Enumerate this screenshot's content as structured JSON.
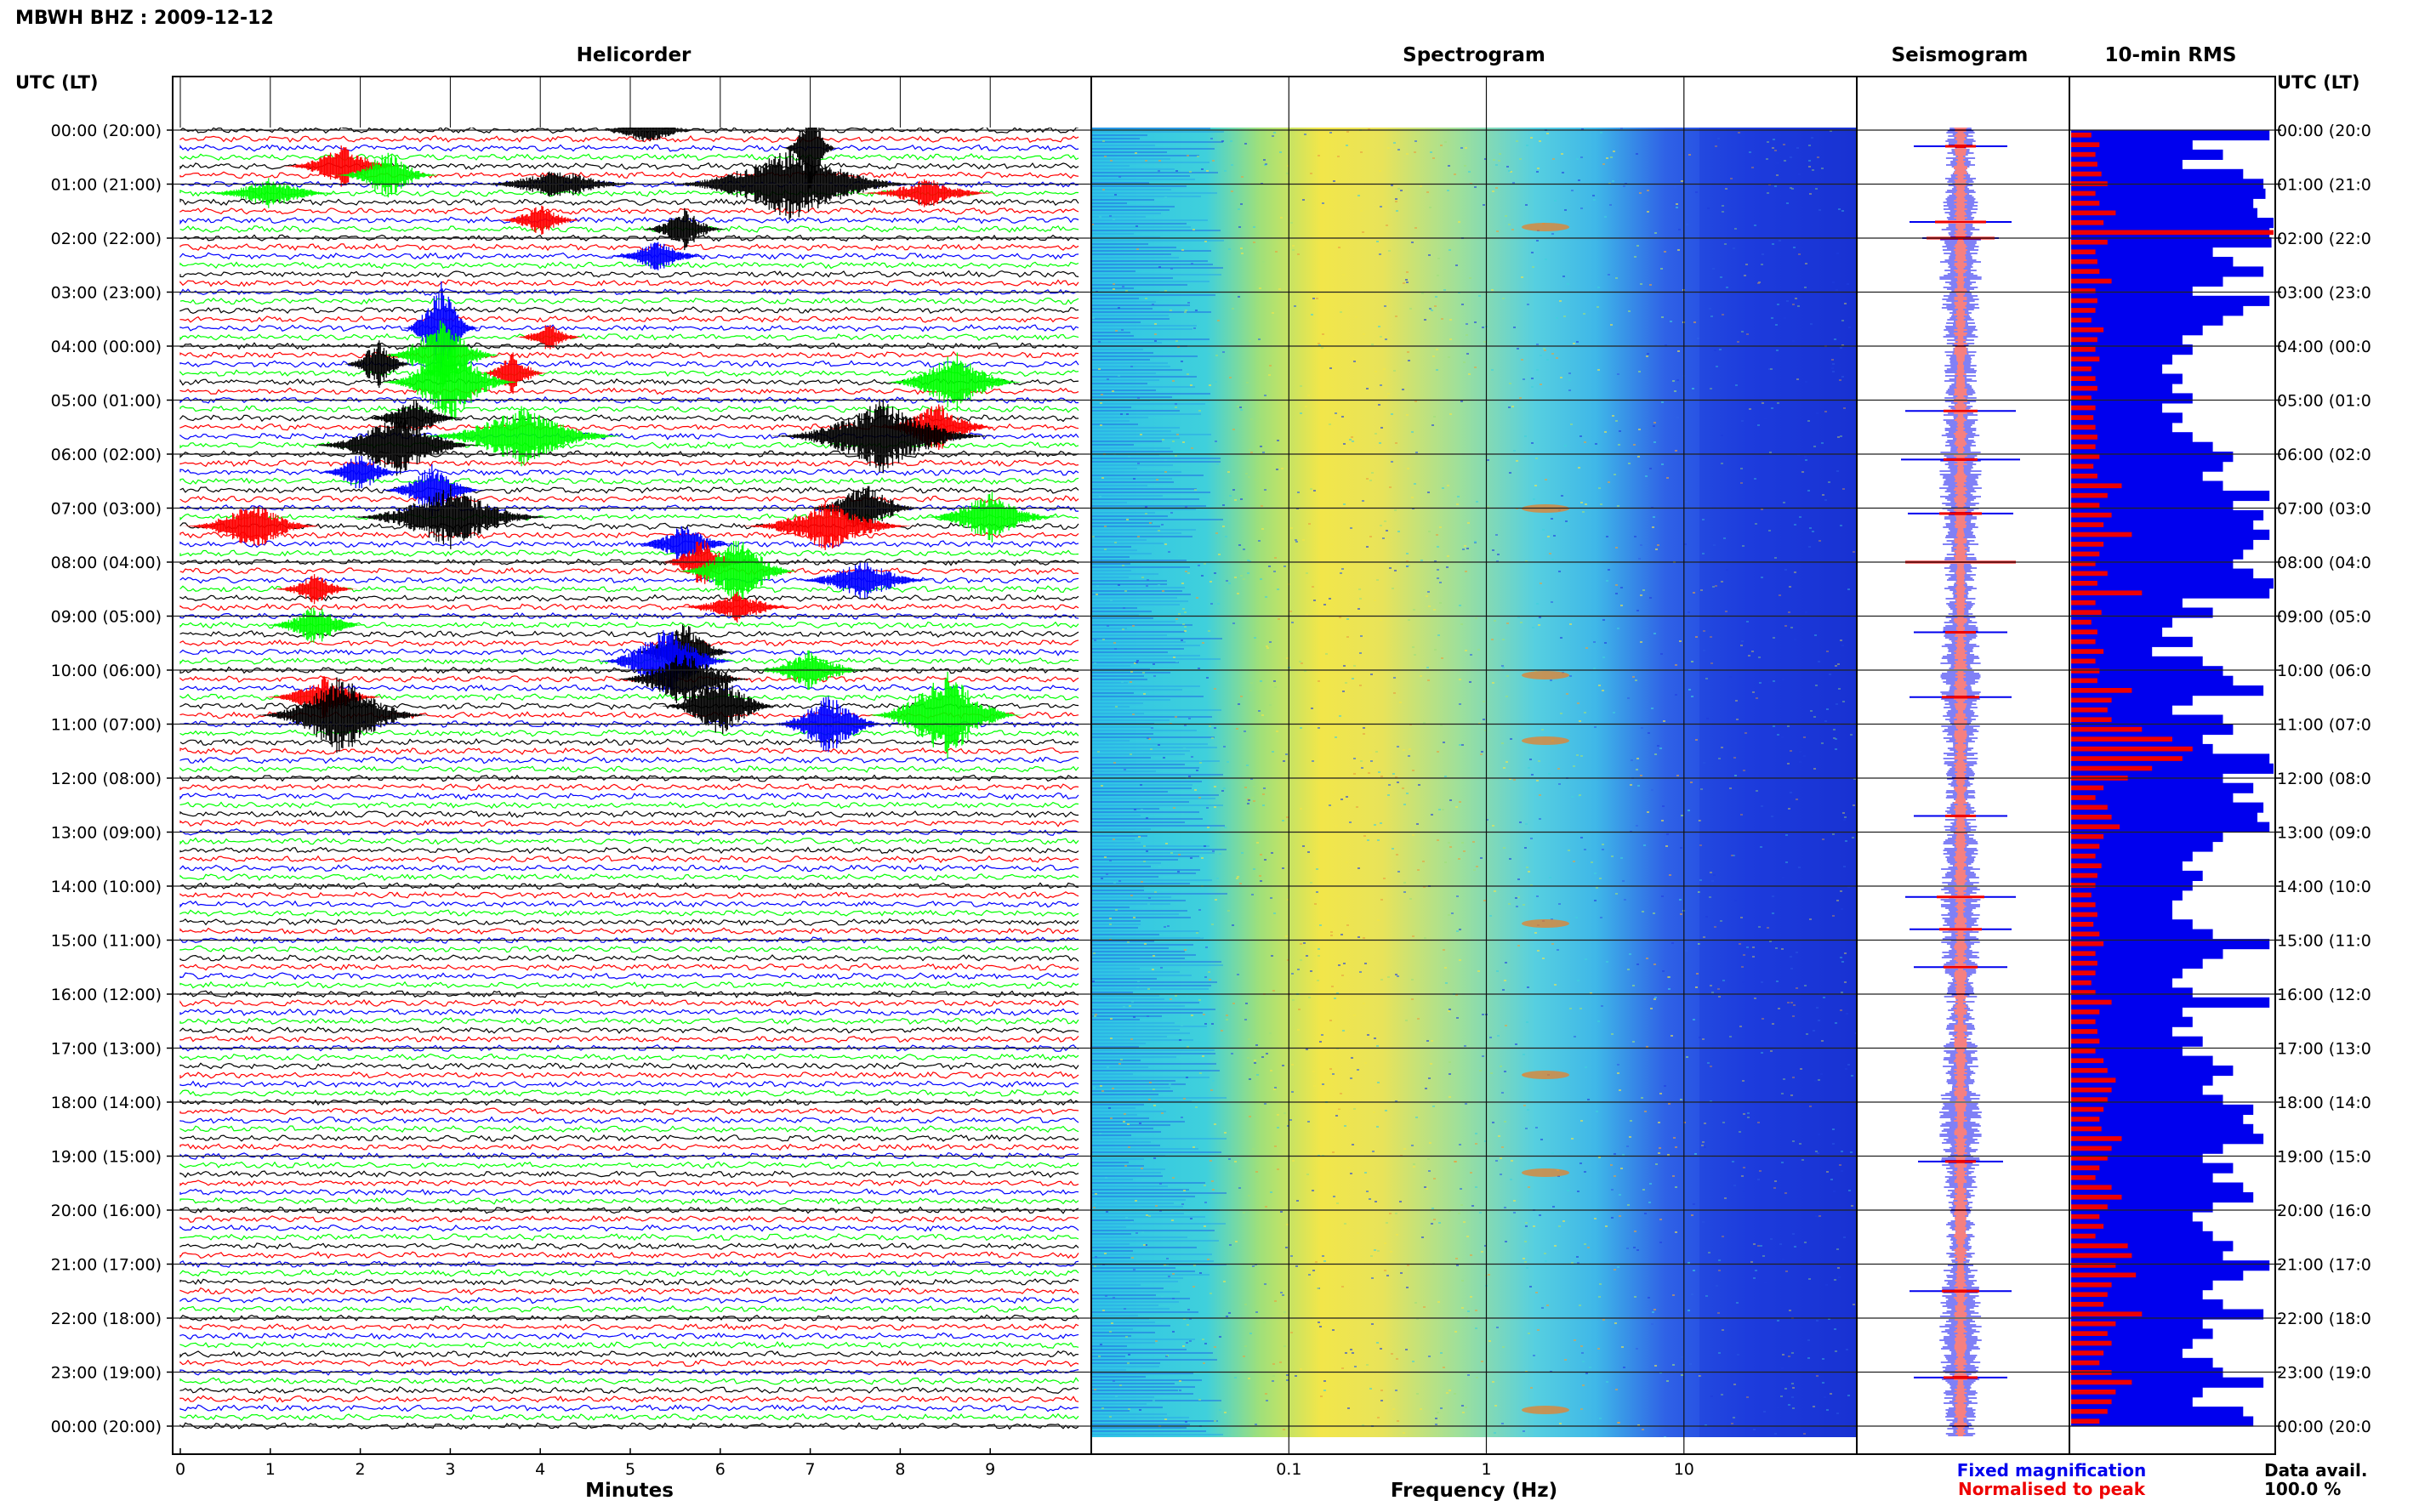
{
  "header": {
    "station_title": "MBWH BHZ : 2009-12-12",
    "utc_lt_label": "UTC (LT)"
  },
  "panels": {
    "helicorder_title": "Helicorder",
    "spectrogram_title": "Spectrogram",
    "seismogram_title": "Seismogram",
    "rms_title": "10-min RMS"
  },
  "axes": {
    "minutes_label": "Minutes",
    "frequency_label": "Frequency (Hz)"
  },
  "legend": {
    "fixed_label": "Fixed magnification",
    "normalised_label": "Normalised to peak",
    "fixed_color": "#0000ee",
    "normalised_color": "#ee0000"
  },
  "footer": {
    "data_avail_label": "Data avail.",
    "data_avail_value": "100.0 %"
  },
  "chart_data": {
    "type": "helicorder",
    "hour_labels": [
      "00:00 (20:00)",
      "01:00 (21:00)",
      "02:00 (22:00)",
      "03:00 (23:00)",
      "04:00 (00:00)",
      "05:00 (01:00)",
      "06:00 (02:00)",
      "07:00 (03:00)",
      "08:00 (04:00)",
      "09:00 (05:00)",
      "10:00 (06:00)",
      "11:00 (07:00)",
      "12:00 (08:00)",
      "13:00 (09:00)",
      "14:00 (10:00)",
      "15:00 (11:00)",
      "16:00 (12:00)",
      "17:00 (13:00)",
      "18:00 (14:00)",
      "19:00 (15:00)",
      "20:00 (16:00)",
      "21:00 (17:00)",
      "22:00 (18:00)",
      "23:00 (19:00)",
      "00:00 (20:00)"
    ],
    "right_hour_labels": [
      "00:00 (20:0",
      "01:00 (21:0",
      "02:00 (22:0",
      "03:00 (23:0",
      "04:00 (00:0",
      "05:00 (01:0",
      "06:00 (02:0",
      "07:00 (03:0",
      "08:00 (04:0",
      "09:00 (05:0",
      "10:00 (06:0",
      "11:00 (07:0",
      "12:00 (08:0",
      "13:00 (09:0",
      "14:00 (10:0",
      "15:00 (11:0",
      "16:00 (12:0",
      "17:00 (13:0",
      "18:00 (14:0",
      "19:00 (15:0",
      "20:00 (16:0",
      "21:00 (17:0",
      "22:00 (18:0",
      "23:00 (19:0",
      "00:00 (20:0"
    ],
    "minute_ticks": [
      "0",
      "1",
      "2",
      "3",
      "4",
      "5",
      "6",
      "7",
      "8",
      "9"
    ],
    "minutes_range": [
      0,
      10
    ],
    "frequency_ticks": [
      {
        "value": 0.1,
        "label": "0.1"
      },
      {
        "value": 1,
        "label": "1"
      },
      {
        "value": 10,
        "label": "10"
      }
    ],
    "frequency_range": [
      0.01,
      75
    ],
    "trace_colors": [
      "#000000",
      "#ff0000",
      "#0000ff",
      "#00ff00"
    ],
    "events": [
      {
        "row": 0,
        "minute": 5.2,
        "width": 1.2,
        "amp": 3,
        "color": "#000000"
      },
      {
        "row": 2,
        "minute": 7.0,
        "width": 0.6,
        "amp": 10,
        "color": "#000000"
      },
      {
        "row": 4,
        "minute": 1.8,
        "width": 1.4,
        "amp": 4,
        "color": "#ff0000"
      },
      {
        "row": 5,
        "minute": 2.3,
        "width": 1.2,
        "amp": 5,
        "color": "#00ff00"
      },
      {
        "row": 6,
        "minute": 6.8,
        "width": 3.0,
        "amp": 7,
        "color": "#000000"
      },
      {
        "row": 6,
        "minute": 4.2,
        "width": 2.0,
        "amp": 3,
        "color": "#000000"
      },
      {
        "row": 7,
        "minute": 1.0,
        "width": 1.6,
        "amp": 3,
        "color": "#00ff00"
      },
      {
        "row": 7,
        "minute": 8.3,
        "width": 1.6,
        "amp": 3,
        "color": "#ff0000"
      },
      {
        "row": 10,
        "minute": 4.0,
        "width": 1.0,
        "amp": 3,
        "color": "#ff0000"
      },
      {
        "row": 11,
        "minute": 5.6,
        "width": 1.0,
        "amp": 4,
        "color": "#000000"
      },
      {
        "row": 14,
        "minute": 5.3,
        "width": 1.2,
        "amp": 3,
        "color": "#0000ff"
      },
      {
        "row": 22,
        "minute": 2.9,
        "width": 0.9,
        "amp": 9,
        "color": "#0000ff"
      },
      {
        "row": 23,
        "minute": 4.1,
        "width": 0.8,
        "amp": 3,
        "color": "#ff0000"
      },
      {
        "row": 25,
        "minute": 2.9,
        "width": 1.4,
        "amp": 7,
        "color": "#00ff00"
      },
      {
        "row": 26,
        "minute": 2.2,
        "width": 0.8,
        "amp": 5,
        "color": "#000000"
      },
      {
        "row": 27,
        "minute": 3.7,
        "width": 0.8,
        "amp": 4,
        "color": "#ff0000"
      },
      {
        "row": 28,
        "minute": 3.0,
        "width": 1.6,
        "amp": 8,
        "color": "#00ff00"
      },
      {
        "row": 28,
        "minute": 8.6,
        "width": 1.6,
        "amp": 6,
        "color": "#00ff00"
      },
      {
        "row": 32,
        "minute": 2.6,
        "width": 1.2,
        "amp": 4,
        "color": "#000000"
      },
      {
        "row": 33,
        "minute": 8.4,
        "width": 1.4,
        "amp": 5,
        "color": "#ff0000"
      },
      {
        "row": 34,
        "minute": 3.8,
        "width": 2.4,
        "amp": 6,
        "color": "#00ff00"
      },
      {
        "row": 34,
        "minute": 7.8,
        "width": 2.6,
        "amp": 7,
        "color": "#000000"
      },
      {
        "row": 35,
        "minute": 2.4,
        "width": 2.0,
        "amp": 6,
        "color": "#000000"
      },
      {
        "row": 38,
        "minute": 2.0,
        "width": 1.0,
        "amp": 4,
        "color": "#0000ff"
      },
      {
        "row": 40,
        "minute": 2.8,
        "width": 1.2,
        "amp": 5,
        "color": "#0000ff"
      },
      {
        "row": 42,
        "minute": 7.6,
        "width": 1.4,
        "amp": 5,
        "color": "#000000"
      },
      {
        "row": 43,
        "minute": 3.0,
        "width": 2.4,
        "amp": 6,
        "color": "#000000"
      },
      {
        "row": 43,
        "minute": 9.0,
        "width": 1.6,
        "amp": 5,
        "color": "#00ff00"
      },
      {
        "row": 44,
        "minute": 0.8,
        "width": 1.6,
        "amp": 5,
        "color": "#ff0000"
      },
      {
        "row": 44,
        "minute": 7.2,
        "width": 2.0,
        "amp": 5,
        "color": "#ff0000"
      },
      {
        "row": 46,
        "minute": 5.6,
        "width": 1.2,
        "amp": 4,
        "color": "#0000ff"
      },
      {
        "row": 48,
        "minute": 5.8,
        "width": 1.0,
        "amp": 5,
        "color": "#ff0000"
      },
      {
        "row": 49,
        "minute": 6.2,
        "width": 1.4,
        "amp": 7,
        "color": "#00ff00"
      },
      {
        "row": 50,
        "minute": 7.6,
        "width": 1.6,
        "amp": 4,
        "color": "#0000ff"
      },
      {
        "row": 51,
        "minute": 1.5,
        "width": 1.0,
        "amp": 3,
        "color": "#ff0000"
      },
      {
        "row": 53,
        "minute": 6.2,
        "width": 1.4,
        "amp": 3,
        "color": "#ff0000"
      },
      {
        "row": 55,
        "minute": 1.5,
        "width": 1.2,
        "amp": 4,
        "color": "#00ff00"
      },
      {
        "row": 58,
        "minute": 5.6,
        "width": 1.2,
        "amp": 6,
        "color": "#000000"
      },
      {
        "row": 59,
        "minute": 5.4,
        "width": 1.6,
        "amp": 7,
        "color": "#0000ff"
      },
      {
        "row": 60,
        "minute": 7.0,
        "width": 1.4,
        "amp": 4,
        "color": "#00ff00"
      },
      {
        "row": 61,
        "minute": 5.6,
        "width": 1.6,
        "amp": 6,
        "color": "#000000"
      },
      {
        "row": 63,
        "minute": 1.6,
        "width": 1.4,
        "amp": 4,
        "color": "#ff0000"
      },
      {
        "row": 64,
        "minute": 6.0,
        "width": 1.4,
        "amp": 6,
        "color": "#000000"
      },
      {
        "row": 65,
        "minute": 1.8,
        "width": 2.0,
        "amp": 8,
        "color": "#000000"
      },
      {
        "row": 65,
        "minute": 8.5,
        "width": 1.8,
        "amp": 9,
        "color": "#00ff00"
      },
      {
        "row": 66,
        "minute": 7.2,
        "width": 1.4,
        "amp": 6,
        "color": "#0000ff"
      }
    ],
    "seismogram_spikes": [
      {
        "hour": 0.3,
        "fixed": 55,
        "norm": 18
      },
      {
        "hour": 1.7,
        "fixed": 60,
        "norm": 30
      },
      {
        "hour": 2.0,
        "fixed": 45,
        "norm": 40
      },
      {
        "hour": 5.2,
        "fixed": 65,
        "norm": 20
      },
      {
        "hour": 6.1,
        "fixed": 70,
        "norm": 20
      },
      {
        "hour": 7.1,
        "fixed": 62,
        "norm": 25
      },
      {
        "hour": 8.0,
        "fixed": 65,
        "norm": 65
      },
      {
        "hour": 9.3,
        "fixed": 55,
        "norm": 18
      },
      {
        "hour": 10.5,
        "fixed": 60,
        "norm": 22
      },
      {
        "hour": 12.7,
        "fixed": 55,
        "norm": 18
      },
      {
        "hour": 14.2,
        "fixed": 65,
        "norm": 28
      },
      {
        "hour": 14.8,
        "fixed": 60,
        "norm": 25
      },
      {
        "hour": 15.5,
        "fixed": 55,
        "norm": 20
      },
      {
        "hour": 19.1,
        "fixed": 50,
        "norm": 18
      },
      {
        "hour": 21.5,
        "fixed": 60,
        "norm": 22
      },
      {
        "hour": 23.1,
        "fixed": 55,
        "norm": 20
      }
    ],
    "rms": [
      {
        "fixed": 0.98,
        "norm": 0.1
      },
      {
        "fixed": 0.6,
        "norm": 0.14
      },
      {
        "fixed": 0.75,
        "norm": 0.12
      },
      {
        "fixed": 0.55,
        "norm": 0.13
      },
      {
        "fixed": 0.85,
        "norm": 0.15
      },
      {
        "fixed": 0.95,
        "norm": 0.18
      },
      {
        "fixed": 0.96,
        "norm": 0.12
      },
      {
        "fixed": 0.9,
        "norm": 0.14
      },
      {
        "fixed": 0.92,
        "norm": 0.22
      },
      {
        "fixed": 1.0,
        "norm": 0.16
      },
      {
        "fixed": 0.98,
        "norm": 1.0
      },
      {
        "fixed": 0.99,
        "norm": 0.18
      },
      {
        "fixed": 0.7,
        "norm": 0.12
      },
      {
        "fixed": 0.8,
        "norm": 0.13
      },
      {
        "fixed": 0.95,
        "norm": 0.14
      },
      {
        "fixed": 0.75,
        "norm": 0.2
      },
      {
        "fixed": 0.6,
        "norm": 0.12
      },
      {
        "fixed": 0.98,
        "norm": 0.13
      },
      {
        "fixed": 0.85,
        "norm": 0.12
      },
      {
        "fixed": 0.75,
        "norm": 0.1
      },
      {
        "fixed": 0.65,
        "norm": 0.16
      },
      {
        "fixed": 0.55,
        "norm": 0.13
      },
      {
        "fixed": 0.6,
        "norm": 0.12
      },
      {
        "fixed": 0.5,
        "norm": 0.14
      },
      {
        "fixed": 0.45,
        "norm": 0.1
      },
      {
        "fixed": 0.55,
        "norm": 0.12
      },
      {
        "fixed": 0.5,
        "norm": 0.13
      },
      {
        "fixed": 0.6,
        "norm": 0.1
      },
      {
        "fixed": 0.45,
        "norm": 0.12
      },
      {
        "fixed": 0.55,
        "norm": 0.11
      },
      {
        "fixed": 0.5,
        "norm": 0.12
      },
      {
        "fixed": 0.6,
        "norm": 0.13
      },
      {
        "fixed": 0.7,
        "norm": 0.12
      },
      {
        "fixed": 0.8,
        "norm": 0.14
      },
      {
        "fixed": 0.75,
        "norm": 0.11
      },
      {
        "fixed": 0.65,
        "norm": 0.13
      },
      {
        "fixed": 0.75,
        "norm": 0.25
      },
      {
        "fixed": 0.98,
        "norm": 0.18
      },
      {
        "fixed": 0.8,
        "norm": 0.14
      },
      {
        "fixed": 0.95,
        "norm": 0.2
      },
      {
        "fixed": 0.9,
        "norm": 0.16
      },
      {
        "fixed": 0.98,
        "norm": 0.3
      },
      {
        "fixed": 0.9,
        "norm": 0.16
      },
      {
        "fixed": 0.85,
        "norm": 0.14
      },
      {
        "fixed": 0.8,
        "norm": 0.12
      },
      {
        "fixed": 0.9,
        "norm": 0.18
      },
      {
        "fixed": 1.0,
        "norm": 0.13
      },
      {
        "fixed": 0.98,
        "norm": 0.35
      },
      {
        "fixed": 0.55,
        "norm": 0.12
      },
      {
        "fixed": 0.7,
        "norm": 0.15
      },
      {
        "fixed": 0.5,
        "norm": 0.1
      },
      {
        "fixed": 0.45,
        "norm": 0.13
      },
      {
        "fixed": 0.6,
        "norm": 0.12
      },
      {
        "fixed": 0.4,
        "norm": 0.16
      },
      {
        "fixed": 0.65,
        "norm": 0.12
      },
      {
        "fixed": 0.75,
        "norm": 0.14
      },
      {
        "fixed": 0.8,
        "norm": 0.13
      },
      {
        "fixed": 0.95,
        "norm": 0.3
      },
      {
        "fixed": 0.6,
        "norm": 0.2
      },
      {
        "fixed": 0.5,
        "norm": 0.18
      },
      {
        "fixed": 0.75,
        "norm": 0.2
      },
      {
        "fixed": 0.8,
        "norm": 0.35
      },
      {
        "fixed": 0.65,
        "norm": 0.5
      },
      {
        "fixed": 0.7,
        "norm": 0.6
      },
      {
        "fixed": 0.98,
        "norm": 0.55
      },
      {
        "fixed": 1.0,
        "norm": 0.4
      },
      {
        "fixed": 0.75,
        "norm": 0.28
      },
      {
        "fixed": 0.9,
        "norm": 0.16
      },
      {
        "fixed": 0.8,
        "norm": 0.12
      },
      {
        "fixed": 0.95,
        "norm": 0.18
      },
      {
        "fixed": 0.92,
        "norm": 0.2
      },
      {
        "fixed": 0.98,
        "norm": 0.24
      },
      {
        "fixed": 0.75,
        "norm": 0.16
      },
      {
        "fixed": 0.7,
        "norm": 0.14
      },
      {
        "fixed": 0.6,
        "norm": 0.12
      },
      {
        "fixed": 0.55,
        "norm": 0.15
      },
      {
        "fixed": 0.65,
        "norm": 0.13
      },
      {
        "fixed": 0.6,
        "norm": 0.12
      },
      {
        "fixed": 0.55,
        "norm": 0.1
      },
      {
        "fixed": 0.5,
        "norm": 0.12
      },
      {
        "fixed": 0.5,
        "norm": 0.13
      },
      {
        "fixed": 0.6,
        "norm": 0.11
      },
      {
        "fixed": 0.7,
        "norm": 0.14
      },
      {
        "fixed": 0.98,
        "norm": 0.16
      },
      {
        "fixed": 0.75,
        "norm": 0.12
      },
      {
        "fixed": 0.65,
        "norm": 0.13
      },
      {
        "fixed": 0.55,
        "norm": 0.12
      },
      {
        "fixed": 0.5,
        "norm": 0.1
      },
      {
        "fixed": 0.6,
        "norm": 0.12
      },
      {
        "fixed": 0.98,
        "norm": 0.2
      },
      {
        "fixed": 0.55,
        "norm": 0.14
      },
      {
        "fixed": 0.6,
        "norm": 0.12
      },
      {
        "fixed": 0.5,
        "norm": 0.13
      },
      {
        "fixed": 0.65,
        "norm": 0.14
      },
      {
        "fixed": 0.55,
        "norm": 0.12
      },
      {
        "fixed": 0.7,
        "norm": 0.16
      },
      {
        "fixed": 0.8,
        "norm": 0.18
      },
      {
        "fixed": 0.7,
        "norm": 0.22
      },
      {
        "fixed": 0.65,
        "norm": 0.2
      },
      {
        "fixed": 0.75,
        "norm": 0.18
      },
      {
        "fixed": 0.9,
        "norm": 0.16
      },
      {
        "fixed": 0.85,
        "norm": 0.14
      },
      {
        "fixed": 0.9,
        "norm": 0.15
      },
      {
        "fixed": 0.95,
        "norm": 0.25
      },
      {
        "fixed": 0.75,
        "norm": 0.2
      },
      {
        "fixed": 0.65,
        "norm": 0.18
      },
      {
        "fixed": 0.8,
        "norm": 0.14
      },
      {
        "fixed": 0.7,
        "norm": 0.12
      },
      {
        "fixed": 0.85,
        "norm": 0.2
      },
      {
        "fixed": 0.9,
        "norm": 0.25
      },
      {
        "fixed": 0.7,
        "norm": 0.18
      },
      {
        "fixed": 0.6,
        "norm": 0.14
      },
      {
        "fixed": 0.65,
        "norm": 0.16
      },
      {
        "fixed": 0.7,
        "norm": 0.12
      },
      {
        "fixed": 0.8,
        "norm": 0.28
      },
      {
        "fixed": 0.75,
        "norm": 0.3
      },
      {
        "fixed": 0.98,
        "norm": 0.22
      },
      {
        "fixed": 0.85,
        "norm": 0.32
      },
      {
        "fixed": 0.7,
        "norm": 0.2
      },
      {
        "fixed": 0.65,
        "norm": 0.18
      },
      {
        "fixed": 0.75,
        "norm": 0.16
      },
      {
        "fixed": 0.95,
        "norm": 0.35
      },
      {
        "fixed": 0.65,
        "norm": 0.22
      },
      {
        "fixed": 0.7,
        "norm": 0.18
      },
      {
        "fixed": 0.6,
        "norm": 0.2
      },
      {
        "fixed": 0.55,
        "norm": 0.16
      },
      {
        "fixed": 0.7,
        "norm": 0.14
      },
      {
        "fixed": 0.75,
        "norm": 0.2
      },
      {
        "fixed": 0.95,
        "norm": 0.3
      },
      {
        "fixed": 0.65,
        "norm": 0.22
      },
      {
        "fixed": 0.6,
        "norm": 0.2
      },
      {
        "fixed": 0.85,
        "norm": 0.18
      },
      {
        "fixed": 0.9,
        "norm": 0.14
      }
    ]
  }
}
